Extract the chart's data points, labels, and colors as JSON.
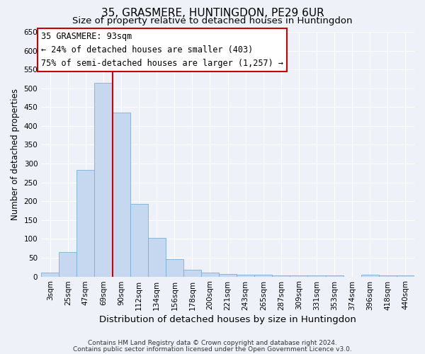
{
  "title": "35, GRASMERE, HUNTINGDON, PE29 6UR",
  "subtitle": "Size of property relative to detached houses in Huntingdon",
  "xlabel": "Distribution of detached houses by size in Huntingdon",
  "ylabel": "Number of detached properties",
  "bar_labels": [
    "3sqm",
    "25sqm",
    "47sqm",
    "69sqm",
    "90sqm",
    "112sqm",
    "134sqm",
    "156sqm",
    "178sqm",
    "200sqm",
    "221sqm",
    "243sqm",
    "265sqm",
    "287sqm",
    "309sqm",
    "331sqm",
    "353sqm",
    "374sqm",
    "396sqm",
    "418sqm",
    "440sqm"
  ],
  "bar_values": [
    10,
    65,
    283,
    515,
    435,
    193,
    103,
    46,
    18,
    10,
    7,
    5,
    4,
    3,
    3,
    3,
    3,
    0,
    5,
    3,
    3
  ],
  "bar_color": "#c5d8f0",
  "bar_edge_color": "#7ab0d8",
  "vline_color": "#cc0000",
  "ylim": [
    0,
    650
  ],
  "yticks": [
    0,
    50,
    100,
    150,
    200,
    250,
    300,
    350,
    400,
    450,
    500,
    550,
    600,
    650
  ],
  "annotation_title": "35 GRASMERE: 93sqm",
  "annotation_line1": "← 24% of detached houses are smaller (403)",
  "annotation_line2": "75% of semi-detached houses are larger (1,257) →",
  "annotation_box_facecolor": "#ffffff",
  "annotation_box_edgecolor": "#cc0000",
  "footer_line1": "Contains HM Land Registry data © Crown copyright and database right 2024.",
  "footer_line2": "Contains public sector information licensed under the Open Government Licence v3.0.",
  "bg_color": "#eef2f8",
  "plot_bg_color": "#eef2f8",
  "grid_color": "#ffffff",
  "title_fontsize": 11,
  "subtitle_fontsize": 9.5,
  "xlabel_fontsize": 9.5,
  "ylabel_fontsize": 8.5,
  "tick_fontsize": 7.5,
  "annotation_fontsize": 8.5,
  "footer_fontsize": 6.5
}
